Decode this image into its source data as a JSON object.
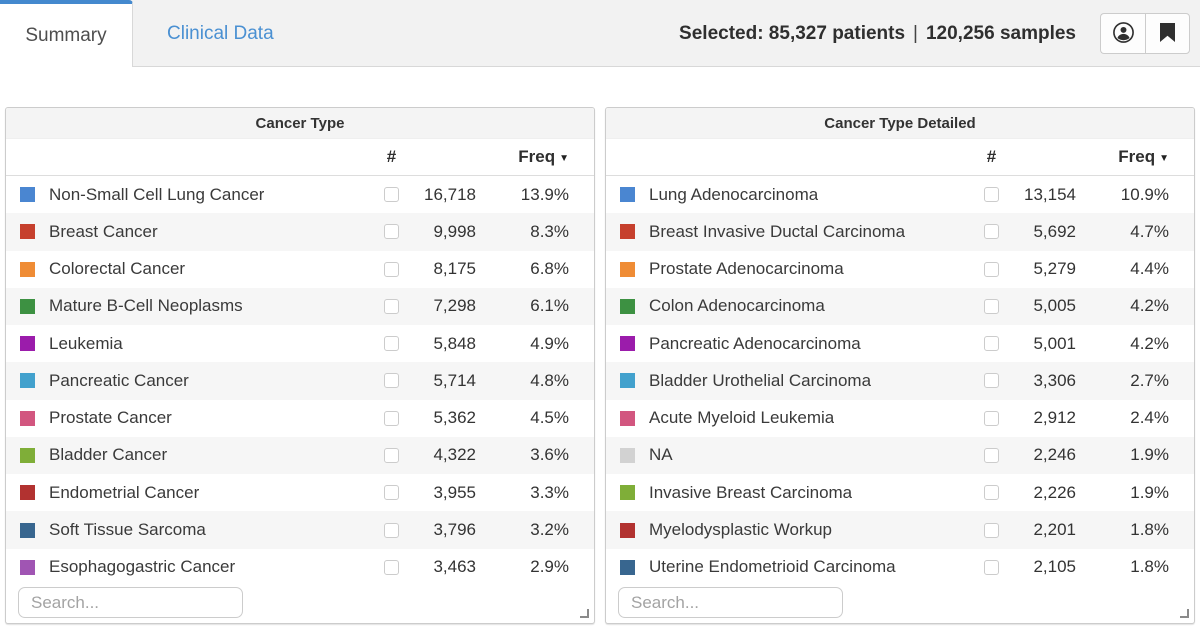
{
  "header": {
    "tabs": [
      {
        "label": "Summary",
        "active": true
      },
      {
        "label": "Clinical Data",
        "active": false
      }
    ],
    "selection": {
      "patients": "Selected: 85,327 patients",
      "separator": "|",
      "samples": "120,256 samples"
    },
    "buttons": [
      {
        "icon": "user-icon"
      },
      {
        "icon": "bookmark-icon"
      }
    ]
  },
  "colors": {
    "active_tab_accent": "#4489ce",
    "link_blue": "#4a90d2"
  },
  "sort_icon": "▼",
  "tables": [
    {
      "title": "Cancer Type",
      "columns": {
        "count": "#",
        "freq": "Freq"
      },
      "search_placeholder": "Search...",
      "rows": [
        {
          "label": "Non-Small Cell Lung Cancer",
          "color": "#4a86d1",
          "count": "16,718",
          "freq": "13.9%"
        },
        {
          "label": "Breast Cancer",
          "color": "#c6402d",
          "count": "9,998",
          "freq": "8.3%"
        },
        {
          "label": "Colorectal Cancer",
          "color": "#ef8c35",
          "count": "8,175",
          "freq": "6.8%"
        },
        {
          "label": "Mature B-Cell Neoplasms",
          "color": "#3d9142",
          "count": "7,298",
          "freq": "6.1%"
        },
        {
          "label": "Leukemia",
          "color": "#9b1cab",
          "count": "5,848",
          "freq": "4.9%"
        },
        {
          "label": "Pancreatic Cancer",
          "color": "#42a1cd",
          "count": "5,714",
          "freq": "4.8%"
        },
        {
          "label": "Prostate Cancer",
          "color": "#d2567f",
          "count": "5,362",
          "freq": "4.5%"
        },
        {
          "label": "Bladder Cancer",
          "color": "#7fae38",
          "count": "4,322",
          "freq": "3.6%"
        },
        {
          "label": "Endometrial Cancer",
          "color": "#b23230",
          "count": "3,955",
          "freq": "3.3%"
        },
        {
          "label": "Soft Tissue Sarcoma",
          "color": "#38668f",
          "count": "3,796",
          "freq": "3.2%"
        },
        {
          "label": "Esophagogastric Cancer",
          "color": "#a055b3",
          "count": "3,463",
          "freq": "2.9%"
        }
      ]
    },
    {
      "title": "Cancer Type Detailed",
      "columns": {
        "count": "#",
        "freq": "Freq"
      },
      "search_placeholder": "Search...",
      "rows": [
        {
          "label": "Lung Adenocarcinoma",
          "color": "#4a86d1",
          "count": "13,154",
          "freq": "10.9%"
        },
        {
          "label": "Breast Invasive Ductal Carcinoma",
          "color": "#c6402d",
          "count": "5,692",
          "freq": "4.7%"
        },
        {
          "label": "Prostate Adenocarcinoma",
          "color": "#ef8c35",
          "count": "5,279",
          "freq": "4.4%"
        },
        {
          "label": "Colon Adenocarcinoma",
          "color": "#3d9142",
          "count": "5,005",
          "freq": "4.2%"
        },
        {
          "label": "Pancreatic Adenocarcinoma",
          "color": "#9b1cab",
          "count": "5,001",
          "freq": "4.2%"
        },
        {
          "label": "Bladder Urothelial Carcinoma",
          "color": "#42a1cd",
          "count": "3,306",
          "freq": "2.7%"
        },
        {
          "label": "Acute Myeloid Leukemia",
          "color": "#d2567f",
          "count": "2,912",
          "freq": "2.4%"
        },
        {
          "label": "NA",
          "color": "#d2d2d2",
          "count": "2,246",
          "freq": "1.9%"
        },
        {
          "label": "Invasive Breast Carcinoma",
          "color": "#7fae38",
          "count": "2,226",
          "freq": "1.9%"
        },
        {
          "label": "Myelodysplastic Workup",
          "color": "#b23230",
          "count": "2,201",
          "freq": "1.8%"
        },
        {
          "label": "Uterine Endometrioid Carcinoma",
          "color": "#38668f",
          "count": "2,105",
          "freq": "1.8%"
        }
      ]
    }
  ]
}
